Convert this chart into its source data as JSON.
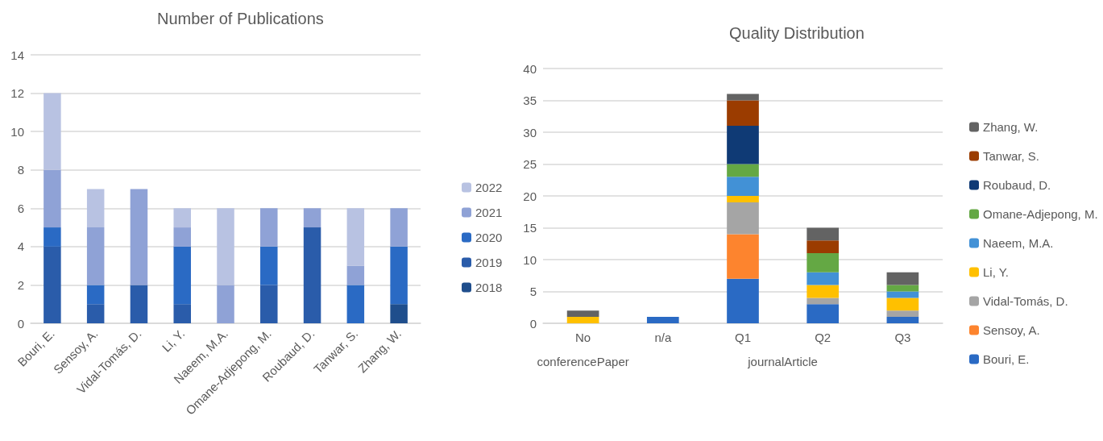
{
  "chart_data": [
    {
      "type": "bar",
      "title": "Number of Publications",
      "stacked": true,
      "legend": "right",
      "grid": "y",
      "categories": [
        "Bouri, E.",
        "Sensoy, A.",
        "Vidal-Tomás, D.",
        "Li, Y.",
        "Naeem, M.A.",
        "Omane-Adjepong, M.",
        "Roubaud, D.",
        "Tanwar, S.",
        "Zhang, W."
      ],
      "ylim": [
        0,
        14
      ],
      "yticks": [
        0,
        2,
        4,
        6,
        8,
        10,
        12,
        14
      ],
      "series": [
        {
          "name": "2018",
          "color": "#1f4e8c",
          "values": [
            0,
            0,
            0,
            0,
            0,
            0,
            0,
            0,
            1
          ]
        },
        {
          "name": "2019",
          "color": "#2a5caa",
          "values": [
            4,
            1,
            2,
            1,
            0,
            2,
            5,
            0,
            0
          ]
        },
        {
          "name": "2020",
          "color": "#2a6ac4",
          "values": [
            1,
            1,
            0,
            3,
            0,
            2,
            0,
            2,
            3
          ]
        },
        {
          "name": "2021",
          "color": "#8fa2d6",
          "values": [
            3,
            3,
            5,
            1,
            2,
            2,
            1,
            1,
            2
          ]
        },
        {
          "name": "2022",
          "color": "#b8c2e2",
          "values": [
            4,
            2,
            0,
            1,
            4,
            0,
            0,
            3,
            0
          ]
        }
      ]
    },
    {
      "type": "bar",
      "title": "Quality Distribution",
      "stacked": true,
      "legend": "right",
      "grid": "y",
      "categories": [
        "No",
        "n/a",
        "Q1",
        "Q2",
        "Q3"
      ],
      "annotations": [
        "conferencePaper",
        "journalArticle"
      ],
      "ylim": [
        0,
        40
      ],
      "yticks": [
        0,
        5,
        10,
        15,
        20,
        25,
        30,
        35,
        40
      ],
      "series": [
        {
          "name": "Bouri, E.",
          "color": "#2a6ac4",
          "values": [
            0,
            1,
            7,
            3,
            1
          ]
        },
        {
          "name": "Sensoy, A.",
          "color": "#fd842e",
          "values": [
            0,
            0,
            7,
            0,
            0
          ]
        },
        {
          "name": "Vidal-Tomás, D.",
          "color": "#a5a5a5",
          "values": [
            0,
            0,
            5,
            1,
            1
          ]
        },
        {
          "name": "Li, Y.",
          "color": "#ffc000",
          "values": [
            1,
            0,
            1,
            2,
            2
          ]
        },
        {
          "name": "Naeem, M.A.",
          "color": "#4291d6",
          "values": [
            0,
            0,
            3,
            2,
            1
          ]
        },
        {
          "name": "Omane-Adjepong, M.",
          "color": "#64a844",
          "values": [
            0,
            0,
            2,
            3,
            1
          ]
        },
        {
          "name": "Roubaud, D.",
          "color": "#0f3a75",
          "values": [
            0,
            0,
            6,
            0,
            0
          ]
        },
        {
          "name": "Tanwar, S.",
          "color": "#9b3c00",
          "values": [
            0,
            0,
            4,
            2,
            0
          ]
        },
        {
          "name": "Zhang, W.",
          "color": "#636363",
          "values": [
            1,
            0,
            1,
            2,
            2
          ]
        }
      ]
    }
  ]
}
